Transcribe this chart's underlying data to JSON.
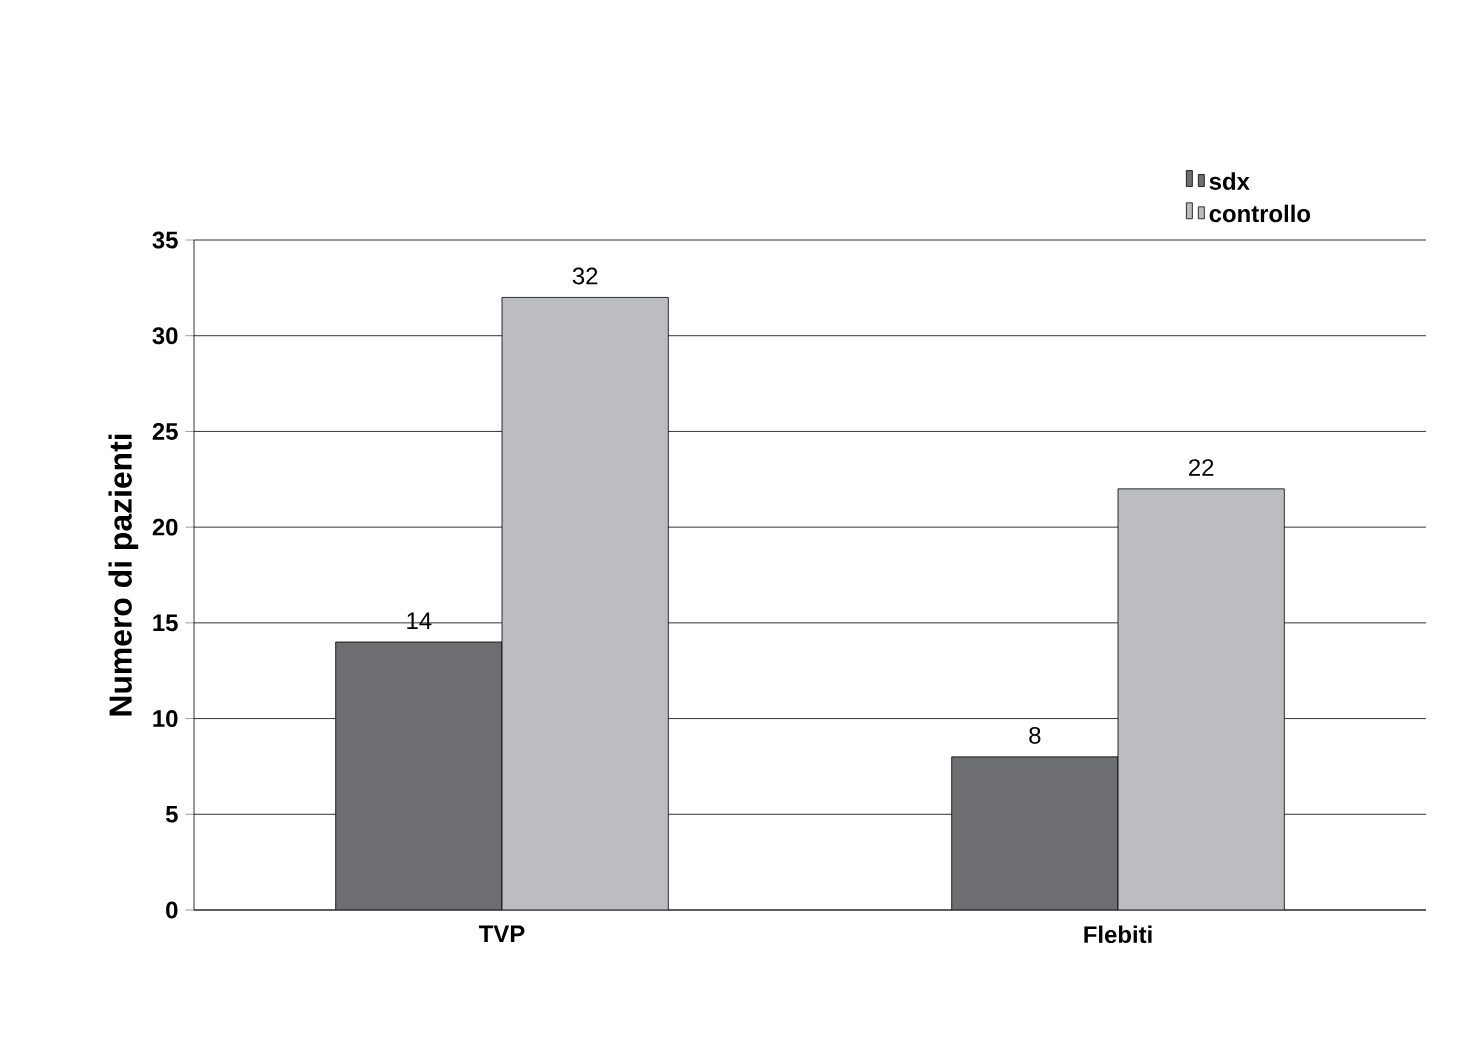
{
  "chart_data": {
    "type": "bar",
    "ylabel": "Numero di pazienti",
    "categories": [
      "TVP",
      "Flebiti"
    ],
    "series": [
      {
        "name": "sdx",
        "color": "#6d6e71",
        "values": [
          14,
          8
        ]
      },
      {
        "name": "controllo",
        "color": "#bcbdc0",
        "values": [
          32,
          22
        ]
      }
    ],
    "ylim": [
      0,
      35
    ],
    "yticks": [
      0,
      5,
      10,
      15,
      20,
      25,
      30,
      35
    ],
    "grid": "y",
    "legend": "top right",
    "data_labels": true
  }
}
